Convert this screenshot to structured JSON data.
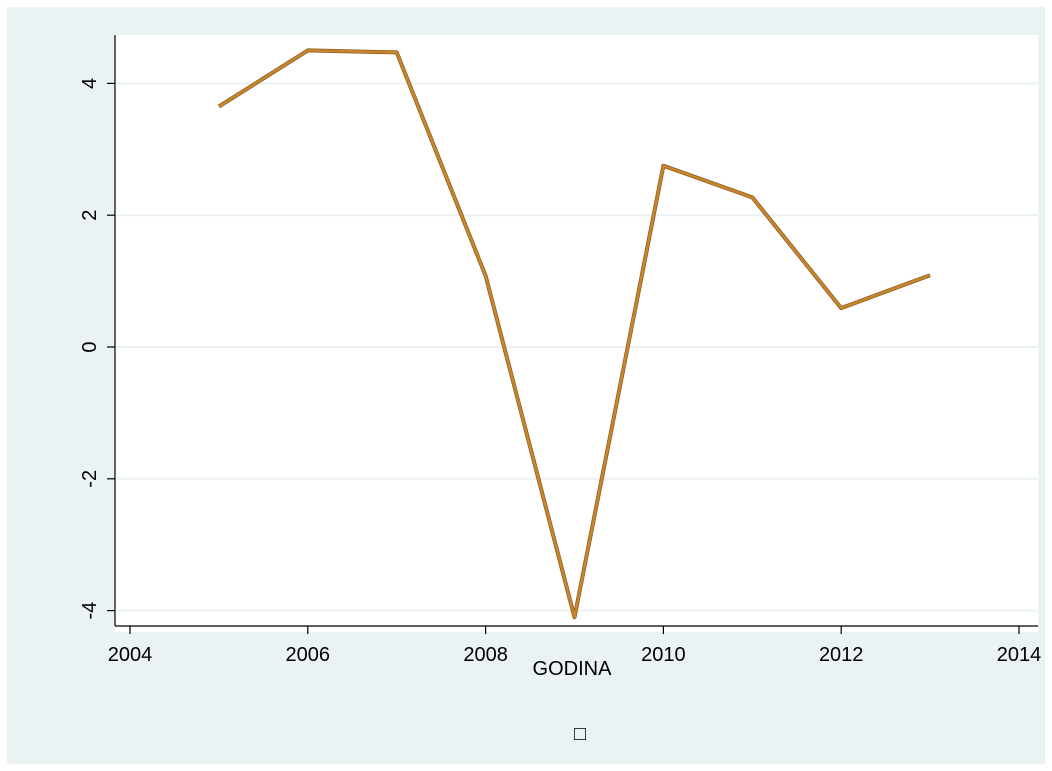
{
  "chart_data": {
    "type": "line",
    "title": "",
    "xlabel": "GODINA",
    "ylabel": "",
    "x": [
      2005,
      2006,
      2007,
      2008,
      2009,
      2010,
      2011,
      2012,
      2013
    ],
    "series": [
      {
        "values": [
          3.65,
          4.5,
          4.47,
          1.08,
          -4.1,
          2.75,
          2.27,
          0.59,
          1.09
        ]
      }
    ],
    "xlim": [
      2004,
      2014
    ],
    "ylim": [
      -4.3,
      4.8
    ],
    "xticks": [
      2004,
      2006,
      2008,
      2010,
      2012,
      2014
    ],
    "yticks": [
      -4,
      -2,
      0,
      2,
      4
    ],
    "grid": true,
    "legend": "bottom",
    "legend_symbol": "□",
    "colors": {
      "background": "#eaf2f3",
      "plot_background": "#ffffff",
      "gridline": "#eaf2f3",
      "line": "#c7852e",
      "axis": "#000000"
    }
  }
}
